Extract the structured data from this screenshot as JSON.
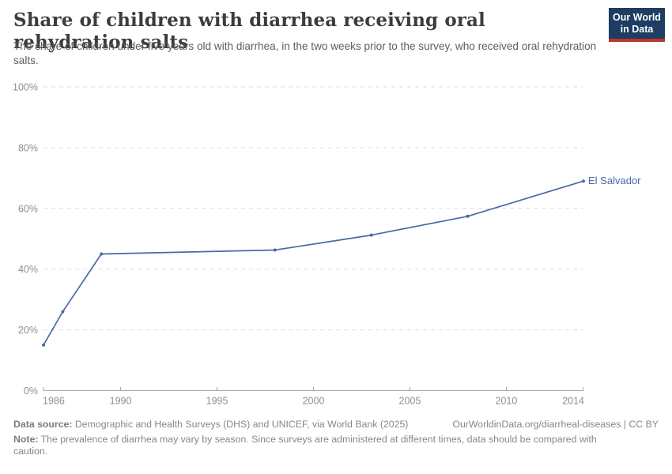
{
  "header": {
    "title": "Share of children with diarrhea receiving oral rehydration salts",
    "subtitle": "The share of children under five years old with diarrhea, in the two weeks prior to the survey, who received oral rehydration salts.",
    "logo": {
      "line1": "Our World",
      "line2": "in Data",
      "bg_color": "#1d3d63",
      "stripe_color": "#b9372d"
    }
  },
  "chart_data": {
    "type": "line",
    "title": "Share of children with diarrhea receiving oral rehydration salts",
    "x": [
      1986,
      1987,
      1989,
      1998,
      2003,
      2008,
      2014
    ],
    "series": [
      {
        "name": "El Salvador",
        "color": "#4a69a5",
        "values": [
          15,
          26,
          45,
          46.3,
          51.2,
          57.4,
          69
        ]
      }
    ],
    "xlabel": "",
    "ylabel": "",
    "xlim": [
      1986,
      2014
    ],
    "ylim": [
      0,
      100
    ],
    "xticks": [
      1986,
      1990,
      1995,
      2000,
      2005,
      2010,
      2014
    ],
    "yticks": [
      0,
      20,
      40,
      60,
      80,
      100
    ],
    "ytick_suffix": "%",
    "grid": "horizontal-dashed",
    "legend_position": "line-end-label",
    "colors": {
      "gridline": "#dcdcdc",
      "axis": "#a5a5a5",
      "tick_label": "#8f8f8f"
    }
  },
  "footer": {
    "datasource_label": "Data source:",
    "datasource_text": " Demographic and Health Surveys (DHS) and UNICEF, via World Bank (2025)",
    "link_text": "OurWorldinData.org/diarrheal-diseases | CC BY",
    "note_label": "Note:",
    "note_text": " The prevalence of diarrhea may vary by season. Since surveys are administered at different times, data should be compared with caution."
  }
}
